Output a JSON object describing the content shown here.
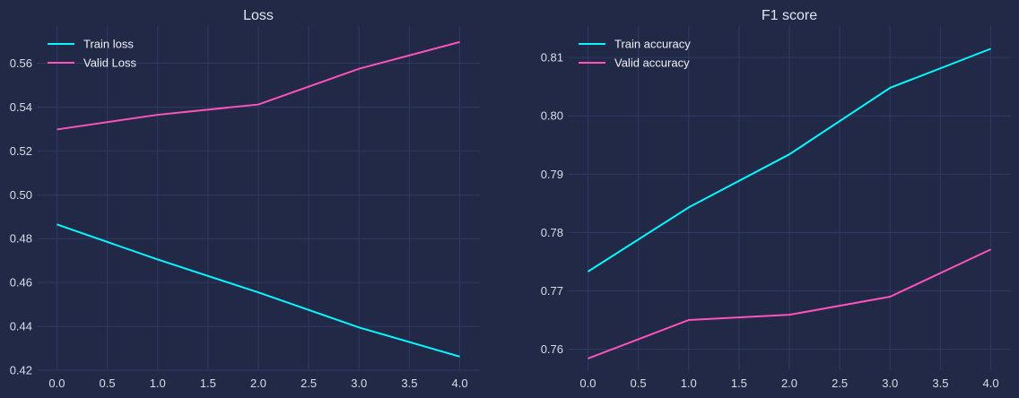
{
  "chart_data": [
    {
      "type": "line",
      "title": "Loss",
      "xlabel": "",
      "ylabel": "",
      "x": [
        0,
        1,
        2,
        3,
        4
      ],
      "xlim": [
        -0.2,
        4.2
      ],
      "ylim": [
        0.42,
        0.577
      ],
      "xticks": [
        0.0,
        0.5,
        1.0,
        1.5,
        2.0,
        2.5,
        3.0,
        3.5,
        4.0
      ],
      "xtick_labels": [
        "0.0",
        "0.5",
        "1.0",
        "1.5",
        "2.0",
        "2.5",
        "3.0",
        "3.5",
        "4.0"
      ],
      "yticks": [
        0.42,
        0.44,
        0.46,
        0.48,
        0.5,
        0.52,
        0.54,
        0.56
      ],
      "ytick_labels": [
        "0.42",
        "0.44",
        "0.46",
        "0.48",
        "0.50",
        "0.52",
        "0.54",
        "0.56"
      ],
      "grid": true,
      "legend_position": "top-left",
      "series": [
        {
          "name": "Train loss",
          "color": "#08F7FE",
          "values": [
            0.4865,
            0.4705,
            0.4555,
            0.4395,
            0.4262
          ]
        },
        {
          "name": "Valid Loss",
          "color": "#FE53BB",
          "values": [
            0.5298,
            0.5365,
            0.5412,
            0.5575,
            0.5697
          ]
        }
      ]
    },
    {
      "type": "line",
      "title": "F1 score",
      "xlabel": "",
      "ylabel": "",
      "x": [
        0,
        1,
        2,
        3,
        4
      ],
      "xlim": [
        -0.2,
        4.2
      ],
      "ylim": [
        0.7564,
        0.8154
      ],
      "xticks": [
        0.0,
        0.5,
        1.0,
        1.5,
        2.0,
        2.5,
        3.0,
        3.5,
        4.0
      ],
      "xtick_labels": [
        "0.0",
        "0.5",
        "1.0",
        "1.5",
        "2.0",
        "2.5",
        "3.0",
        "3.5",
        "4.0"
      ],
      "yticks": [
        0.76,
        0.77,
        0.78,
        0.79,
        0.8,
        0.81
      ],
      "ytick_labels": [
        "0.76",
        "0.77",
        "0.78",
        "0.79",
        "0.80",
        "0.81"
      ],
      "grid": true,
      "legend_position": "top-left",
      "series": [
        {
          "name": "Train accuracy",
          "color": "#08F7FE",
          "values": [
            0.7733,
            0.7843,
            0.7934,
            0.8048,
            0.8115
          ]
        },
        {
          "name": "Valid accuracy",
          "color": "#FE53BB",
          "values": [
            0.7584,
            0.765,
            0.7659,
            0.769,
            0.7771
          ]
        }
      ]
    }
  ]
}
